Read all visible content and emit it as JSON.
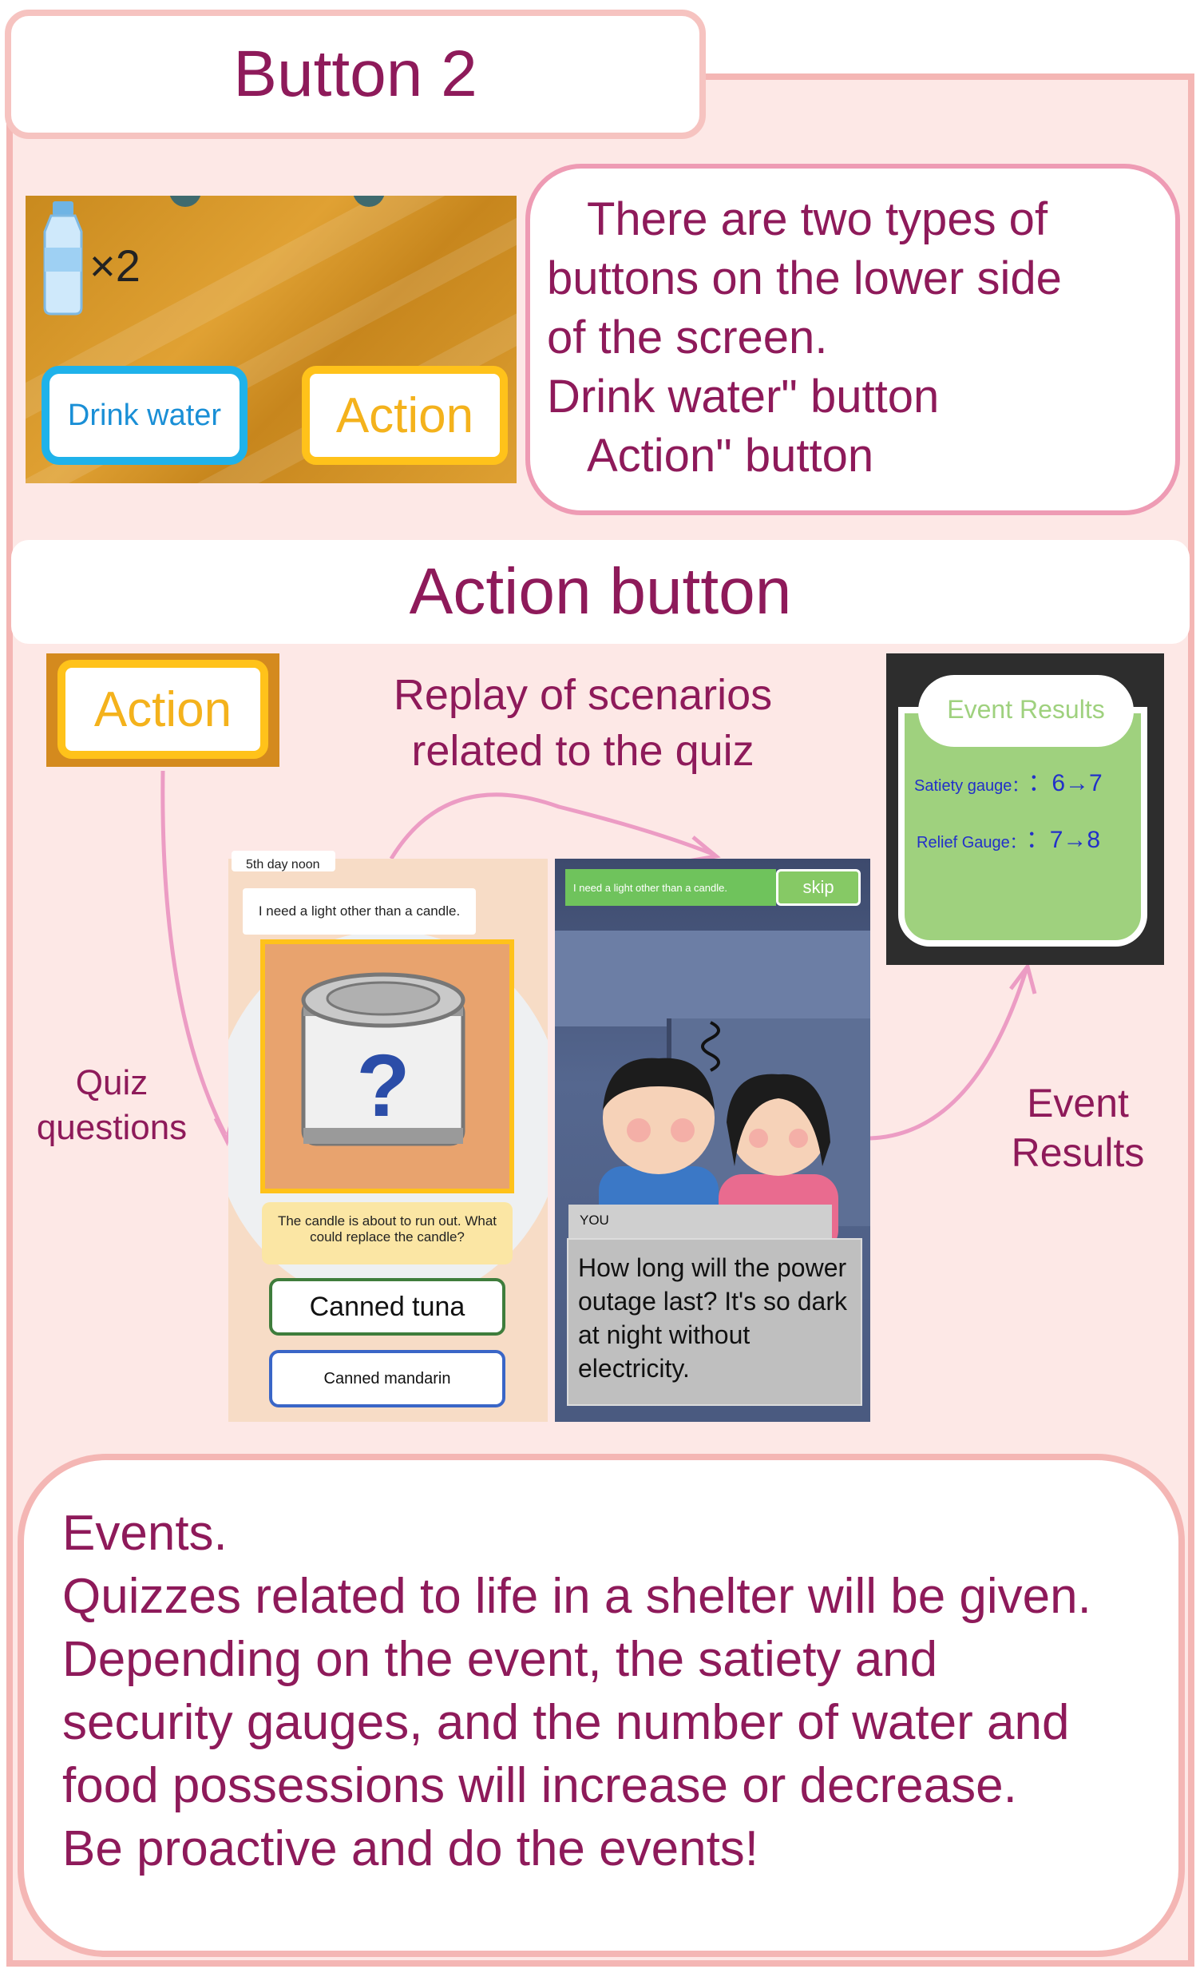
{
  "header": {
    "title": "Button 2"
  },
  "game_top": {
    "water_count": "×2",
    "drink_label": "Drink water",
    "action_label": "Action"
  },
  "explain": {
    "lines": [
      "There are two types of",
      "buttons on the lower side",
      "of the screen.",
      "Drink water\" button",
      "Action\" button"
    ]
  },
  "section2": {
    "title": "Action button"
  },
  "action_icon_label": "Action",
  "replay_label": [
    "Replay of scenarios",
    "related to the quiz"
  ],
  "quiz_label": [
    "Quiz",
    "questions"
  ],
  "event_label": [
    "Event",
    "Results"
  ],
  "quiz_screen": {
    "day": "5th day noon",
    "prompt": "I need a light other than a candle.",
    "question_mark": "?",
    "hint": "The candle is about to run out. What could replace the candle?",
    "option1": "Canned tuna",
    "option2": "Canned mandarin"
  },
  "scene_screen": {
    "prompt": "I need a light other than a candle.",
    "skip": "skip",
    "speaker": "YOU",
    "dialog": "How long will the power outage last? It's so dark at night without electricity."
  },
  "event_results": {
    "title": "Event Results",
    "satiety_label": "Satiety gauge：",
    "satiety_value": "：6→7",
    "relief_label": "Relief Gauge：",
    "relief_value": "：7→8"
  },
  "events_box": {
    "lines": [
      "Events.",
      "Quizzes related to life in a shelter will be given.",
      "Depending on the event, the satiety and",
      "security gauges, and the number of water and",
      "food possessions will increase or decrease.",
      "Be proactive and do the events!"
    ]
  },
  "colors": {
    "maroon": "#8e1a5a",
    "pink_border": "#f4b6b4",
    "panel_bg": "#fde8e6",
    "drink_blue": "#1fb2ea",
    "action_yellow": "#ffc21a"
  }
}
